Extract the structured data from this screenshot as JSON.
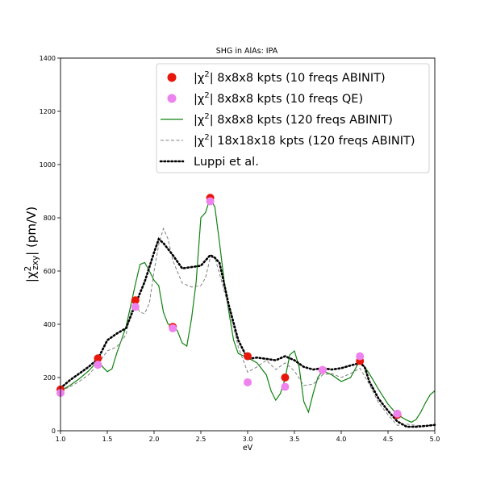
{
  "chart_data": {
    "type": "line",
    "title": "SHG in AlAs: IPA",
    "xlabel": "eV",
    "ylabel": "|χ²zxy| (pm/V)",
    "xlim": [
      1.0,
      5.0
    ],
    "ylim": [
      0,
      1400
    ],
    "xticks": [
      1.0,
      1.5,
      2.0,
      2.5,
      3.0,
      3.5,
      4.0,
      4.5,
      5.0
    ],
    "xtick_labels": [
      "1.0",
      "1.5",
      "2.0",
      "2.5",
      "3.0",
      "3.5",
      "4.0",
      "4.5",
      "5.0"
    ],
    "yticks": [
      0,
      200,
      400,
      600,
      800,
      1000,
      1200,
      1400
    ],
    "ytick_labels": [
      "0",
      "200",
      "400",
      "600",
      "800",
      "1000",
      "1200",
      "1400"
    ],
    "grid": false,
    "legend_position": "top-right",
    "series": [
      {
        "name": "|χ²| 8x8x8 kpts (10 freqs ABINIT)",
        "style": "markers",
        "color": "#e8170b",
        "x": [
          1.0,
          1.4,
          1.8,
          2.2,
          2.6,
          3.0,
          3.4,
          3.8,
          4.2,
          4.6
        ],
        "y": [
          155,
          272,
          490,
          390,
          875,
          280,
          200,
          228,
          262,
          60
        ]
      },
      {
        "name": "|χ²| 8x8x8 kpts (10 freqs QE)",
        "style": "markers",
        "color": "#ee82ee",
        "x": [
          1.0,
          1.4,
          1.8,
          2.2,
          2.6,
          3.0,
          3.4,
          3.8,
          4.2,
          4.6
        ],
        "y": [
          142,
          248,
          465,
          385,
          862,
          182,
          165,
          228,
          280,
          64
        ]
      },
      {
        "name": "|χ²| 8x8x8 kpts (120 freqs ABINIT)",
        "style": "solid",
        "color": "#128112",
        "x": [
          1.0,
          1.1,
          1.2,
          1.3,
          1.4,
          1.45,
          1.5,
          1.55,
          1.6,
          1.7,
          1.8,
          1.85,
          1.9,
          1.95,
          2.0,
          2.05,
          2.1,
          2.15,
          2.2,
          2.25,
          2.3,
          2.35,
          2.4,
          2.45,
          2.5,
          2.55,
          2.6,
          2.65,
          2.7,
          2.75,
          2.8,
          2.85,
          2.9,
          3.0,
          3.1,
          3.2,
          3.25,
          3.3,
          3.35,
          3.4,
          3.45,
          3.5,
          3.55,
          3.6,
          3.65,
          3.7,
          3.75,
          3.8,
          3.9,
          4.0,
          4.1,
          4.2,
          4.3,
          4.4,
          4.5,
          4.6,
          4.7,
          4.75,
          4.8,
          4.85,
          4.9,
          4.95,
          5.0
        ],
        "y": [
          150,
          170,
          195,
          225,
          262,
          240,
          222,
          232,
          290,
          390,
          550,
          625,
          632,
          600,
          565,
          545,
          445,
          400,
          398,
          375,
          330,
          318,
          420,
          560,
          800,
          820,
          875,
          840,
          705,
          560,
          445,
          340,
          290,
          275,
          255,
          210,
          150,
          115,
          140,
          195,
          285,
          300,
          240,
          110,
          70,
          140,
          200,
          225,
          210,
          185,
          200,
          265,
          215,
          155,
          100,
          60,
          40,
          32,
          42,
          70,
          105,
          135,
          150
        ]
      },
      {
        "name": "|χ²| 18x18x18 kpts (120 freqs ABINIT)",
        "style": "dashed",
        "color": "#808080",
        "x": [
          1.0,
          1.1,
          1.2,
          1.3,
          1.4,
          1.5,
          1.6,
          1.7,
          1.75,
          1.8,
          1.85,
          1.9,
          1.95,
          2.0,
          2.05,
          2.1,
          2.15,
          2.2,
          2.3,
          2.4,
          2.5,
          2.55,
          2.6,
          2.65,
          2.7,
          2.8,
          2.9,
          3.0,
          3.1,
          3.2,
          3.3,
          3.4,
          3.5,
          3.6,
          3.7,
          3.8,
          3.9,
          4.0,
          4.1,
          4.2,
          4.3,
          4.4,
          4.5,
          4.6,
          4.7,
          4.8,
          4.9,
          5.0
        ],
        "y": [
          150,
          165,
          185,
          210,
          250,
          300,
          315,
          360,
          445,
          475,
          445,
          440,
          480,
          600,
          700,
          760,
          720,
          640,
          555,
          540,
          545,
          575,
          650,
          650,
          590,
          460,
          315,
          220,
          240,
          265,
          230,
          255,
          225,
          170,
          175,
          210,
          215,
          200,
          215,
          235,
          175,
          105,
          60,
          20,
          25,
          20,
          20,
          20
        ]
      },
      {
        "name": "Luppi et al.",
        "style": "dotted",
        "color": "#000000",
        "x": [
          1.0,
          1.1,
          1.2,
          1.3,
          1.4,
          1.5,
          1.6,
          1.7,
          1.8,
          1.9,
          2.0,
          2.05,
          2.1,
          2.2,
          2.3,
          2.4,
          2.5,
          2.6,
          2.65,
          2.7,
          2.8,
          2.9,
          3.0,
          3.1,
          3.2,
          3.3,
          3.4,
          3.5,
          3.6,
          3.7,
          3.8,
          3.9,
          4.0,
          4.1,
          4.2,
          4.25,
          4.3,
          4.4,
          4.5,
          4.6,
          4.7,
          4.8,
          4.9,
          5.0
        ],
        "y": [
          160,
          190,
          215,
          240,
          270,
          340,
          365,
          385,
          475,
          560,
          670,
          720,
          705,
          660,
          610,
          615,
          620,
          660,
          650,
          630,
          470,
          340,
          270,
          275,
          270,
          265,
          280,
          265,
          240,
          230,
          235,
          230,
          235,
          245,
          255,
          240,
          185,
          120,
          75,
          35,
          15,
          15,
          18,
          22
        ]
      }
    ]
  }
}
